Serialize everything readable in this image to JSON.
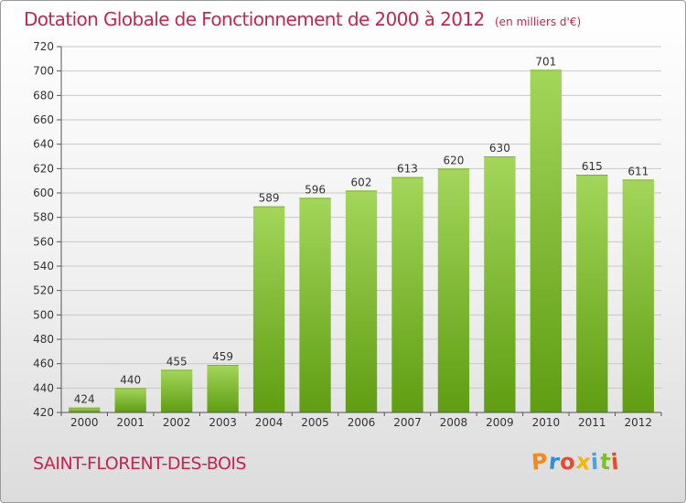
{
  "header": {
    "title": "Dotation Globale de Fonctionnement de 2000 à 2012",
    "unit": "(en milliers d'€)"
  },
  "footer": {
    "commune": "SAINT-FLORENT-DES-BOIS",
    "logo_text": "Proxiti",
    "logo_letters": [
      "P",
      "r",
      "o",
      "x",
      "i",
      "t",
      "i"
    ],
    "logo_colors": [
      "#f08a1c",
      "#2f8fd8",
      "#e94b2a",
      "#f2b705",
      "#4aa3df",
      "#7cbf2e",
      "#e94b2a"
    ]
  },
  "chart_data": {
    "type": "bar",
    "title": "Dotation Globale de Fonctionnement de 2000 à 2012",
    "subtitle": "(en milliers d'€)",
    "xlabel": "",
    "ylabel": "",
    "categories": [
      "2000",
      "2001",
      "2002",
      "2003",
      "2004",
      "2005",
      "2006",
      "2007",
      "2008",
      "2009",
      "2010",
      "2011",
      "2012"
    ],
    "values": [
      424,
      440,
      455,
      459,
      589,
      596,
      602,
      613,
      620,
      630,
      701,
      615,
      611
    ],
    "ylim": [
      420,
      720
    ],
    "yticks": [
      420,
      440,
      460,
      480,
      500,
      520,
      540,
      560,
      580,
      600,
      620,
      640,
      660,
      680,
      700,
      720
    ],
    "grid": true,
    "legend": "none",
    "colors": {
      "bar_top": "#a3d65a",
      "bar_bottom": "#5f9d12",
      "grid": "#c8c8c8",
      "axis": "#555555",
      "text": "#333333"
    }
  }
}
